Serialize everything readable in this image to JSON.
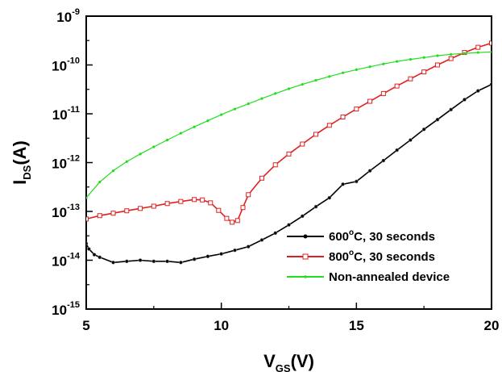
{
  "chart_data": {
    "type": "line",
    "xlabel": {
      "main": "V",
      "sub": "GS",
      "rest": "(V)"
    },
    "ylabel": {
      "main": "I",
      "sub": "DS",
      "rest": "(A)"
    },
    "xlim": [
      5,
      20
    ],
    "ylim": [
      1e-15,
      1e-09
    ],
    "y_scale": "log",
    "grid": false,
    "legend_position": "bottom-right",
    "x_ticks": [
      {
        "value": 5,
        "label": "5"
      },
      {
        "value": 10,
        "label": "10"
      },
      {
        "value": 15,
        "label": "15"
      },
      {
        "value": 20,
        "label": "20"
      }
    ],
    "y_ticks": [
      {
        "exp": -9,
        "base": "10",
        "sup": "-9"
      },
      {
        "exp": -10,
        "base": "10",
        "sup": "-10"
      },
      {
        "exp": -11,
        "base": "10",
        "sup": "-11"
      },
      {
        "exp": -12,
        "base": "10",
        "sup": "-12"
      },
      {
        "exp": -13,
        "base": "10",
        "sup": "-13"
      },
      {
        "exp": -14,
        "base": "10",
        "sup": "-14"
      },
      {
        "exp": -15,
        "base": "10",
        "sup": "-15"
      }
    ],
    "series": [
      {
        "name_parts": [
          "600",
          "o",
          "C, 30 seconds"
        ],
        "color": "#000000",
        "marker": "filled-dot",
        "x": [
          5.0,
          5.1,
          5.3,
          5.5,
          6.0,
          6.5,
          7.0,
          7.5,
          8.0,
          8.5,
          9.0,
          9.5,
          10.0,
          10.5,
          11.0,
          11.5,
          12.0,
          12.5,
          13.0,
          13.5,
          14.0,
          14.5,
          15.0,
          15.5,
          16.0,
          16.5,
          17.0,
          17.5,
          18.0,
          18.5,
          19.0,
          19.5,
          20.0
        ],
        "y": [
          2.2e-14,
          1.7e-14,
          1.3e-14,
          1.15e-14,
          9e-15,
          9.5e-15,
          1e-14,
          9.5e-15,
          9.5e-15,
          9e-15,
          1.05e-14,
          1.2e-14,
          1.35e-14,
          1.6e-14,
          1.9e-14,
          2.6e-14,
          3.6e-14,
          5.3e-14,
          8e-14,
          1.25e-13,
          1.9e-13,
          3.6e-13,
          4.1e-13,
          6.8e-13,
          1.1e-12,
          1.8e-12,
          2.9e-12,
          4.8e-12,
          7.6e-12,
          1.22e-11,
          1.95e-11,
          2.95e-11,
          4e-11
        ]
      },
      {
        "name_parts": [
          "800",
          "o",
          "C, 30 seconds"
        ],
        "color": "#e02020",
        "marker": "open-square",
        "x": [
          5.0,
          5.5,
          6.0,
          6.5,
          7.0,
          7.5,
          8.0,
          8.5,
          9.0,
          9.3,
          9.6,
          9.9,
          10.2,
          10.4,
          10.6,
          10.8,
          11.0,
          11.5,
          12.0,
          12.5,
          13.0,
          13.5,
          14.0,
          14.5,
          15.0,
          15.5,
          16.0,
          16.5,
          17.0,
          17.5,
          18.0,
          18.5,
          19.0,
          19.5,
          20.0
        ],
        "y": [
          7e-14,
          8.2e-14,
          9.2e-14,
          1.03e-13,
          1.15e-13,
          1.28e-13,
          1.45e-13,
          1.6e-13,
          1.75e-13,
          1.72e-13,
          1.5e-13,
          1.05e-13,
          7.2e-14,
          6e-14,
          6.5e-14,
          1.2e-13,
          2.2e-13,
          4.8e-13,
          9e-13,
          1.5e-12,
          2.4e-12,
          3.8e-12,
          5.8e-12,
          8.6e-12,
          1.25e-11,
          1.8e-11,
          2.6e-11,
          3.7e-11,
          5.2e-11,
          7.2e-11,
          1e-10,
          1.35e-10,
          1.8e-10,
          2.3e-10,
          2.8e-10
        ]
      },
      {
        "name_parts": [
          "Non-annealed device"
        ],
        "color": "#22dd22",
        "marker": "small-dot",
        "x": [
          5.0,
          5.5,
          6.0,
          6.5,
          7.0,
          7.5,
          8.0,
          8.5,
          9.0,
          9.5,
          10.0,
          10.5,
          11.0,
          11.5,
          12.0,
          12.5,
          13.0,
          13.5,
          14.0,
          14.5,
          15.0,
          15.5,
          16.0,
          16.5,
          17.0,
          17.5,
          18.0,
          18.5,
          19.0,
          19.5,
          20.0
        ],
        "y": [
          1.9e-13,
          4e-13,
          6.8e-13,
          1.05e-12,
          1.5e-12,
          2.1e-12,
          2.9e-12,
          4e-12,
          5.4e-12,
          7.2e-12,
          9.6e-12,
          1.25e-11,
          1.6e-11,
          2.05e-11,
          2.6e-11,
          3.25e-11,
          4e-11,
          4.85e-11,
          5.8e-11,
          6.9e-11,
          8e-11,
          9.2e-11,
          1.05e-10,
          1.18e-10,
          1.3e-10,
          1.42e-10,
          1.55e-10,
          1.65e-10,
          1.73e-10,
          1.8e-10,
          1.85e-10
        ]
      }
    ]
  }
}
